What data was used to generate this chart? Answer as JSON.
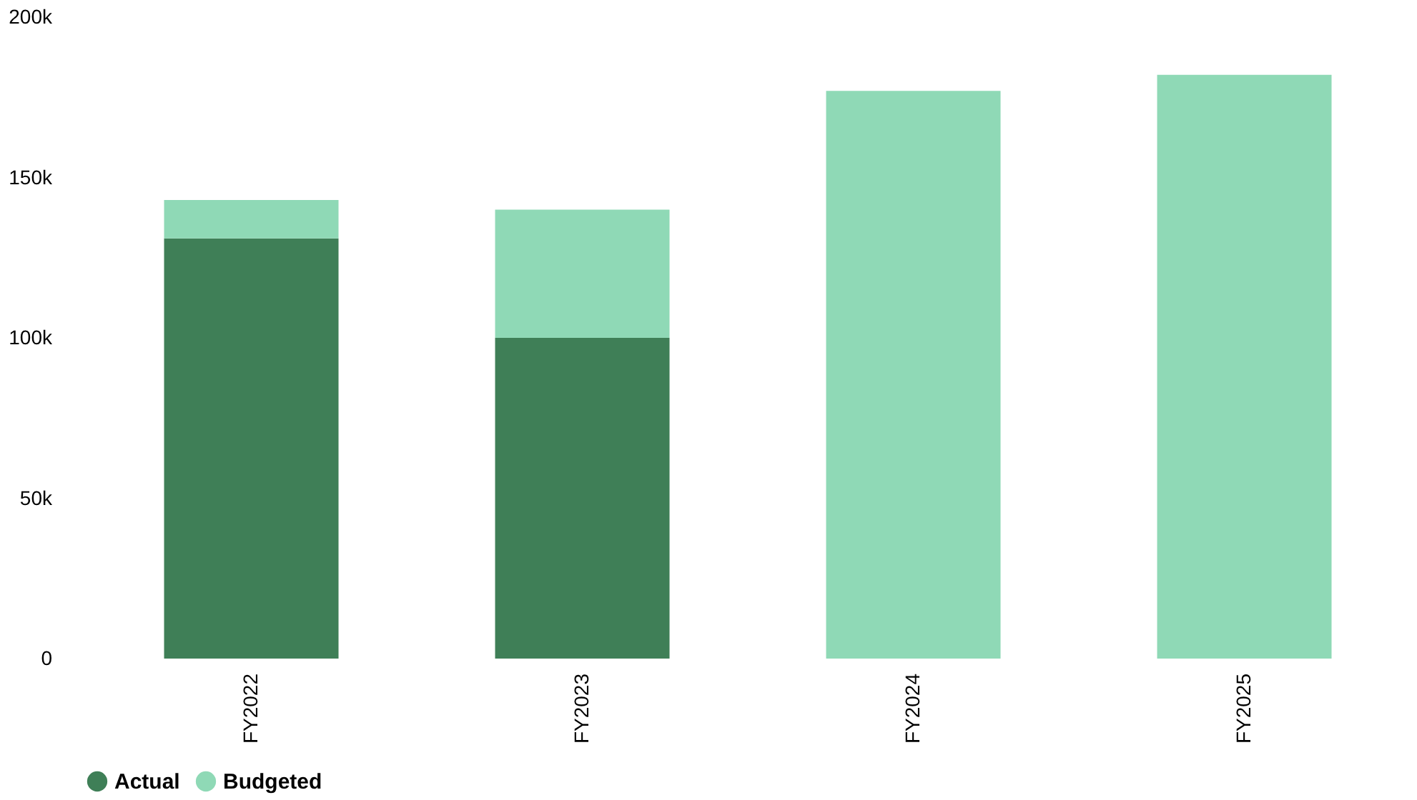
{
  "chart_data": {
    "type": "bar",
    "stacked": true,
    "categories": [
      "FY2022",
      "FY2023",
      "FY2024",
      "FY2025"
    ],
    "series": [
      {
        "name": "Actual",
        "color": "#3f7f57",
        "values": [
          131000,
          100000,
          null,
          null
        ]
      },
      {
        "name": "Budgeted",
        "color": "#8fd9b6",
        "values": [
          12000,
          40000,
          177000,
          182000
        ]
      }
    ],
    "ylim": [
      0,
      200000
    ],
    "yticks": [
      {
        "value": 0,
        "label": "0"
      },
      {
        "value": 50000,
        "label": "50k"
      },
      {
        "value": 100000,
        "label": "100k"
      },
      {
        "value": 150000,
        "label": "150k"
      },
      {
        "value": 200000,
        "label": "200k"
      }
    ],
    "grid": false,
    "legend": "bottom"
  }
}
